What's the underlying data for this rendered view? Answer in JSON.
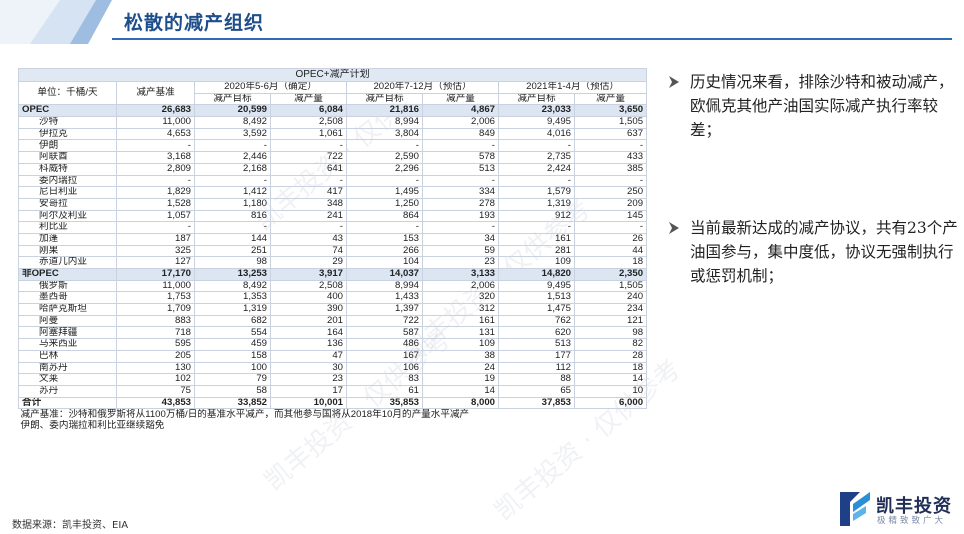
{
  "header": {
    "title": "松散的减产组织"
  },
  "watermark": {
    "text": "凯丰投资 · 仅供参考"
  },
  "table": {
    "caption": "OPEC+减产计划",
    "unit_label": "单位：千桶/天",
    "baseline_header": "减产基准",
    "periods": [
      "2020年5-6月（确定）",
      "2020年7-12月（预估）",
      "2021年1-4月（预估）"
    ],
    "sub_headers": [
      "减产目标",
      "减产量",
      "减产目标",
      "减产量",
      "减产目标",
      "减产量"
    ],
    "blocks": [
      {
        "total": [
          "OPEC",
          "26,683",
          "20,599",
          "6,084",
          "21,816",
          "4,867",
          "23,033",
          "3,650"
        ],
        "rows": [
          [
            "沙特",
            "11,000",
            "8,492",
            "2,508",
            "8,994",
            "2,006",
            "9,495",
            "1,505"
          ],
          [
            "伊拉克",
            "4,653",
            "3,592",
            "1,061",
            "3,804",
            "849",
            "4,016",
            "637"
          ],
          [
            "伊朗",
            "-",
            "-",
            "-",
            "-",
            "-",
            "-",
            "-"
          ],
          [
            "阿联酋",
            "3,168",
            "2,446",
            "722",
            "2,590",
            "578",
            "2,735",
            "433"
          ],
          [
            "科威特",
            "2,809",
            "2,168",
            "641",
            "2,296",
            "513",
            "2,424",
            "385"
          ],
          [
            "委内瑞拉",
            "-",
            "-",
            "-",
            "-",
            "-",
            "-",
            "-"
          ],
          [
            "尼日利亚",
            "1,829",
            "1,412",
            "417",
            "1,495",
            "334",
            "1,579",
            "250"
          ],
          [
            "安哥拉",
            "1,528",
            "1,180",
            "348",
            "1,250",
            "278",
            "1,319",
            "209"
          ],
          [
            "阿尔及利亚",
            "1,057",
            "816",
            "241",
            "864",
            "193",
            "912",
            "145"
          ],
          [
            "利比亚",
            "-",
            "-",
            "-",
            "-",
            "-",
            "-",
            "-"
          ],
          [
            "加蓬",
            "187",
            "144",
            "43",
            "153",
            "34",
            "161",
            "26"
          ],
          [
            "刚果",
            "325",
            "251",
            "74",
            "266",
            "59",
            "281",
            "44"
          ],
          [
            "赤道几内亚",
            "127",
            "98",
            "29",
            "104",
            "23",
            "109",
            "18"
          ]
        ]
      },
      {
        "total": [
          "非OPEC",
          "17,170",
          "13,253",
          "3,917",
          "14,037",
          "3,133",
          "14,820",
          "2,350"
        ],
        "rows": [
          [
            "俄罗斯",
            "11,000",
            "8,492",
            "2,508",
            "8,994",
            "2,006",
            "9,495",
            "1,505"
          ],
          [
            "墨西哥",
            "1,753",
            "1,353",
            "400",
            "1,433",
            "320",
            "1,513",
            "240"
          ],
          [
            "哈萨克斯坦",
            "1,709",
            "1,319",
            "390",
            "1,397",
            "312",
            "1,475",
            "234"
          ],
          [
            "阿曼",
            "883",
            "682",
            "201",
            "722",
            "161",
            "762",
            "121"
          ],
          [
            "阿塞拜疆",
            "718",
            "554",
            "164",
            "587",
            "131",
            "620",
            "98"
          ],
          [
            "马来西亚",
            "595",
            "459",
            "136",
            "486",
            "109",
            "513",
            "82"
          ],
          [
            "巴林",
            "205",
            "158",
            "47",
            "167",
            "38",
            "177",
            "28"
          ],
          [
            "南苏丹",
            "130",
            "100",
            "30",
            "106",
            "24",
            "112",
            "18"
          ],
          [
            "文莱",
            "102",
            "79",
            "23",
            "83",
            "19",
            "88",
            "14"
          ],
          [
            "苏丹",
            "75",
            "58",
            "17",
            "61",
            "14",
            "65",
            "10"
          ]
        ]
      }
    ],
    "grand_total": [
      "合计",
      "43,853",
      "33,852",
      "10,001",
      "35,853",
      "8,000",
      "37,853",
      "6,000"
    ],
    "notes": [
      "减产基准：沙特和俄罗斯将从1100万桶/日的基准水平减产，而其他参与国将从2018年10月的产量水平减产",
      "伊朗、委内瑞拉和利比亚继续豁免"
    ]
  },
  "bullets": [
    "历史情况来看，排除沙特和被动减产，欧佩克其他产油国实际减产执行率较差；",
    "当前最新达成的减产协议，共有23个产油国参与，集中度低，协议无强制执行或惩罚机制；"
  ],
  "source": "数据来源：凯丰投资、EIA",
  "logo": {
    "name": "凯丰投资",
    "slogan": "极精致致广大"
  },
  "colors": {
    "title": "#1f4e8c",
    "rule": "#2e6db3",
    "header_fill": "#dfe8f3"
  }
}
